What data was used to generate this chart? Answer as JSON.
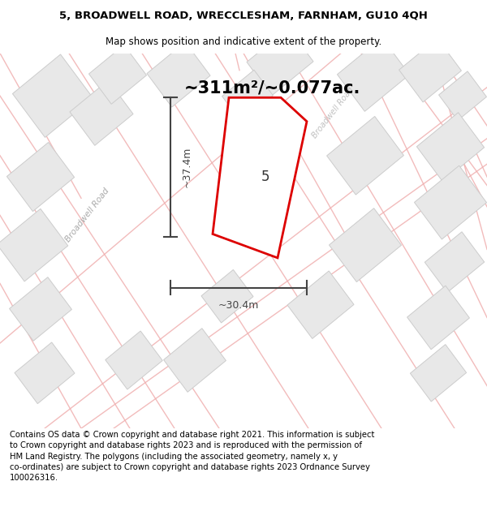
{
  "title": "5, BROADWELL ROAD, WRECCLESHAM, FARNHAM, GU10 4QH",
  "subtitle": "Map shows position and indicative extent of the property.",
  "area_text": "~311m²/~0.077ac.",
  "dim_vertical": "~37.4m",
  "dim_horizontal": "~30.4m",
  "property_label": "5",
  "map_bg_color": "#ffffff",
  "road_line_color": "#f0b0b0",
  "building_fill_color": "#e8e8e8",
  "building_edge_color": "#cccccc",
  "property_edge_color": "#dd0000",
  "property_fill_color": "#ffffff",
  "dim_color": "#444444",
  "road_label_color": "#aaaaaa",
  "title_fontsize": 9.5,
  "subtitle_fontsize": 8.5,
  "area_fontsize": 15,
  "label_fontsize": 12,
  "footer_fontsize": 7.2,
  "footer_text": "Contains OS data © Crown copyright and database right 2021. This information is subject to Crown copyright and database rights 2023 and is reproduced with the permission of HM Land Registry. The polygons (including the associated geometry, namely x, y co-ordinates) are subject to Crown copyright and database rights 2023 Ordnance Survey 100026316."
}
